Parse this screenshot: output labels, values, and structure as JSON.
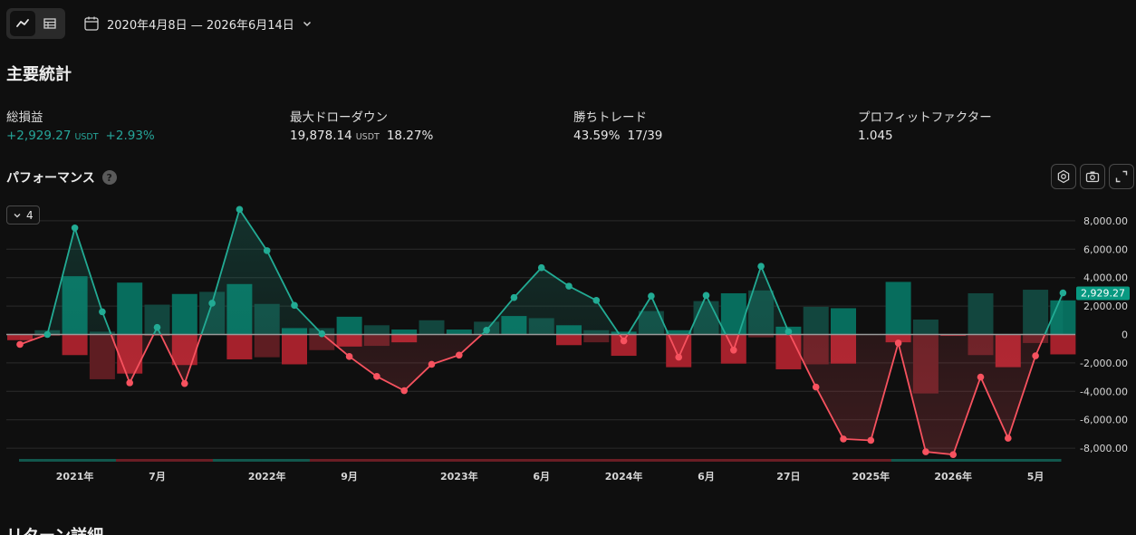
{
  "header": {
    "view_toggle": [
      {
        "icon": "line-chart-icon",
        "active": true
      },
      {
        "icon": "table-icon",
        "active": false
      }
    ],
    "date_range": "2020年4月8日 — 2026年6月14日"
  },
  "stats": {
    "title": "主要統計",
    "items": [
      {
        "label": "総損益",
        "value": "+2,929.27",
        "unit": "USDT",
        "extra": "+2.93%",
        "positive": true
      },
      {
        "label": "最大ドローダウン",
        "value": "19,878.14",
        "unit": "USDT",
        "extra": "18.27%",
        "positive": false
      },
      {
        "label": "勝ちトレード",
        "value": "43.59%",
        "unit": "",
        "extra": "17/39",
        "positive": false
      },
      {
        "label": "プロフィットファクター",
        "value": "1.045",
        "unit": "",
        "extra": "",
        "positive": false
      }
    ]
  },
  "performance": {
    "title": "パフォーマンス",
    "help": "?",
    "series_toggle": "4",
    "tools": [
      "settings-icon",
      "camera-icon",
      "expand-icon"
    ]
  },
  "chart_data": {
    "type": "bar",
    "ylim": [
      -9000,
      9000
    ],
    "y_ticks": [
      "8,000.00",
      "6,000.00",
      "4,000.00",
      "2,000.00",
      "0",
      "-2,000.00",
      "-4,000.00",
      "-6,000.00",
      "-8,000.00"
    ],
    "y_tick_values": [
      8000,
      6000,
      4000,
      2000,
      0,
      -2000,
      -4000,
      -6000,
      -8000
    ],
    "x_ticks": [
      {
        "label": "2021年",
        "index": 2
      },
      {
        "label": "7月",
        "index": 5
      },
      {
        "label": "2022年",
        "index": 9
      },
      {
        "label": "9月",
        "index": 12
      },
      {
        "label": "2023年",
        "index": 16
      },
      {
        "label": "6月",
        "index": 19
      },
      {
        "label": "2024年",
        "index": 22
      },
      {
        "label": "6月",
        "index": 25
      },
      {
        "label": "27日",
        "index": 28
      },
      {
        "label": "2025年",
        "index": 31
      },
      {
        "label": "2026年",
        "index": 34
      },
      {
        "label": "5月",
        "index": 37
      }
    ],
    "current_value_label": "2,929.27",
    "gain_bars": [
      0,
      300,
      4100,
      200,
      3650,
      2100,
      2850,
      3000,
      3550,
      2150,
      450,
      450,
      1250,
      650,
      350,
      1000,
      350,
      900,
      1300,
      1150,
      650,
      300,
      200,
      1650,
      300,
      2350,
      2900,
      3100,
      550,
      1950,
      1850,
      0,
      3700,
      1050,
      0,
      2900,
      0,
      3150,
      2400
    ],
    "loss_bars": [
      -400,
      -100,
      -1450,
      -3150,
      -2750,
      -100,
      -2150,
      0,
      -1750,
      -1600,
      -2100,
      -1100,
      -850,
      -800,
      -550,
      0,
      0,
      0,
      0,
      0,
      -750,
      -550,
      -1500,
      0,
      -2300,
      0,
      -2050,
      -200,
      -2450,
      -2100,
      -2050,
      0,
      -550,
      -4150,
      -100,
      -1450,
      -2300,
      -600,
      -1400
    ],
    "equity_line": [
      -700,
      0,
      7500,
      1600,
      -3400,
      500,
      -3450,
      2200,
      8800,
      5900,
      2050,
      50,
      -1550,
      -2950,
      -3950,
      -2100,
      -1450,
      300,
      2600,
      4700,
      3400,
      2400,
      -450,
      2700,
      -1600,
      2750,
      -1100,
      4800,
      200,
      -3700,
      -7350,
      -7450,
      -600,
      -8250,
      -8450,
      -3000,
      -7300,
      -1500,
      2929.27
    ],
    "period_strip": [
      "green",
      "green",
      "green",
      "green",
      "red",
      "red",
      "red",
      "red",
      "green",
      "green",
      "green",
      "green",
      "red",
      "red",
      "red",
      "red",
      "red",
      "red",
      "red",
      "red",
      "red",
      "red",
      "red",
      "red",
      "red",
      "red",
      "red",
      "red",
      "red",
      "red",
      "red",
      "red",
      "red",
      "red",
      "red",
      "red",
      "green",
      "green",
      "green",
      "green",
      "green",
      "green",
      "green"
    ],
    "colors": {
      "gain": "#089981",
      "loss": "#f23645",
      "line_pos": "#22ab94",
      "line_neg": "#f7525f",
      "grid": "#2b2b2b",
      "axis_text": "#d6d6d6"
    }
  },
  "footer": {
    "next_section_title": "リターン詳細"
  }
}
